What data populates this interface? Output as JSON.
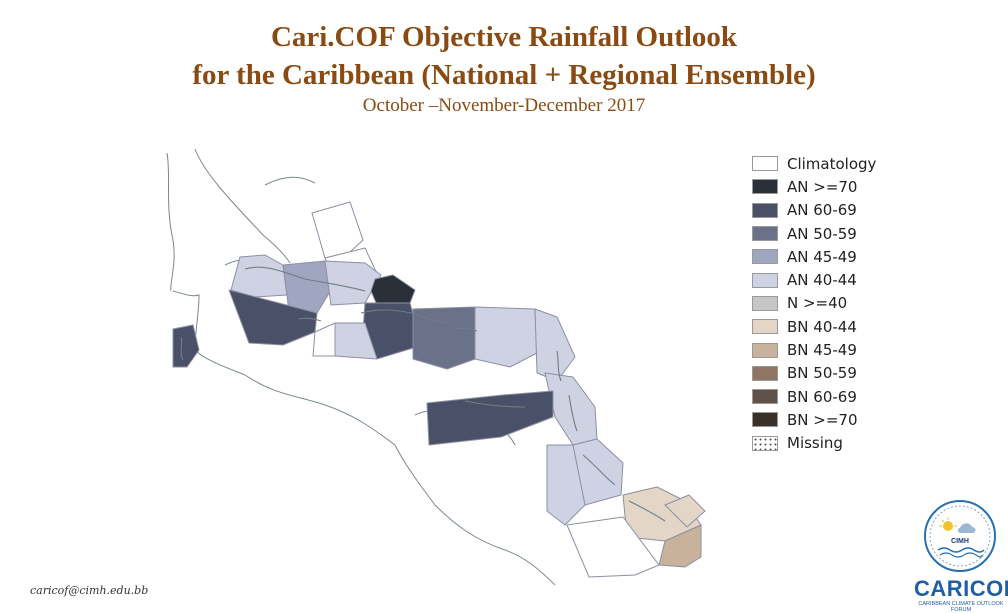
{
  "header": {
    "title_line1": "Cari.COF Objective Rainfall Outlook",
    "title_line2": "for the Caribbean (National + Regional Ensemble)",
    "period": "October –November-December 2017"
  },
  "legend": {
    "items": [
      {
        "label": "Climatology",
        "color": "#ffffff"
      },
      {
        "label": "AN  >=70",
        "color": "#2b2f38"
      },
      {
        "label": "AN 60-69",
        "color": "#4a5067"
      },
      {
        "label": "AN 50-59",
        "color": "#6b7189"
      },
      {
        "label": "AN 45-49",
        "color": "#a1a6c0"
      },
      {
        "label": "AN 40-44",
        "color": "#cfd2e3"
      },
      {
        "label": "N >=40",
        "color": "#c6c6c6"
      },
      {
        "label": "BN 40-44",
        "color": "#e3d6c7"
      },
      {
        "label": "BN 45-49",
        "color": "#c8b29b"
      },
      {
        "label": "BN 50-59",
        "color": "#8f7563"
      },
      {
        "label": "BN 60-69",
        "color": "#5f5148"
      },
      {
        "label": "BN >=70",
        "color": "#3a302a"
      },
      {
        "label": "Missing",
        "color": "#ffffff"
      }
    ]
  },
  "footer": {
    "email": "caricof@cimh.edu.bb"
  },
  "logo": {
    "org": "CIMH",
    "name": "CARICOF",
    "tagline": "CARIBBEAN CLIMATE OUTLOOK FORUM"
  },
  "regions": [
    {
      "name": "bahamas-north",
      "category": "Climatology"
    },
    {
      "name": "turks-caicos",
      "category": "Climatology"
    },
    {
      "name": "cuba-west",
      "category": "AN 40-44"
    },
    {
      "name": "cuba-central",
      "category": "AN 45-49"
    },
    {
      "name": "cuba-east",
      "category": "AN 40-44"
    },
    {
      "name": "windward-passage",
      "category": "AN  >=70"
    },
    {
      "name": "cayman-jamaica-sea",
      "category": "AN 60-69"
    },
    {
      "name": "jamaica-south",
      "category": "Climatology"
    },
    {
      "name": "hispaniola-west",
      "category": "AN 60-69"
    },
    {
      "name": "hispaniola-east",
      "category": "AN 50-59"
    },
    {
      "name": "puerto-rico",
      "category": "AN 40-44"
    },
    {
      "name": "caribbean-sea-band",
      "category": "AN 40-44"
    },
    {
      "name": "belize",
      "category": "AN 60-69"
    },
    {
      "name": "leeward-islands",
      "category": "AN 40-44"
    },
    {
      "name": "windward-islands",
      "category": "AN 40-44"
    },
    {
      "name": "venezuela-coast",
      "category": "AN 60-69"
    },
    {
      "name": "trinidad-guyana-north",
      "category": "AN 40-44"
    },
    {
      "name": "guyana-central",
      "category": "AN 40-44"
    },
    {
      "name": "suriname",
      "category": "BN 40-44"
    },
    {
      "name": "french-guiana-north",
      "category": "BN 40-44"
    },
    {
      "name": "french-guiana-south",
      "category": "BN 45-49"
    },
    {
      "name": "guyana-south",
      "category": "Climatology"
    }
  ]
}
